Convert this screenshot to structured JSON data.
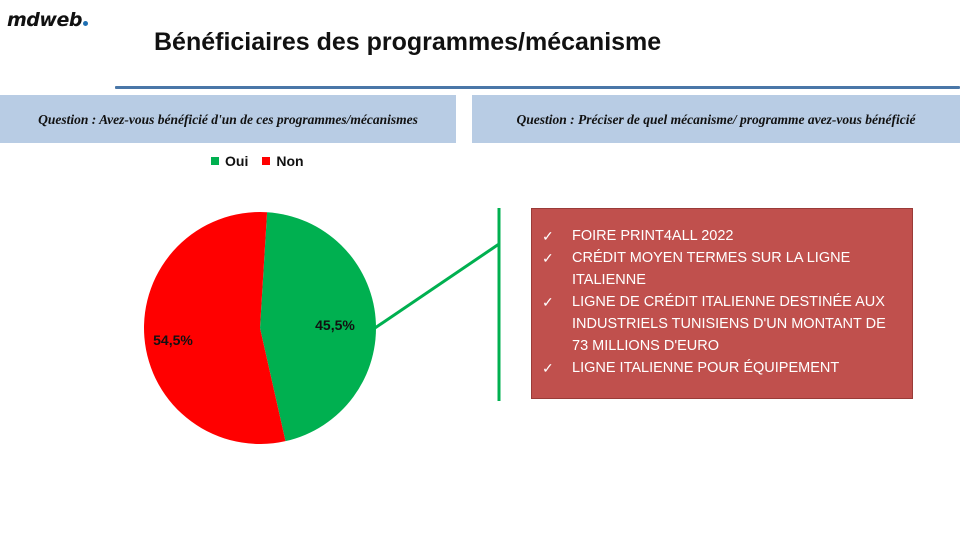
{
  "brand": {
    "logo": "mdweb",
    "dot_color": "#1f6fb2"
  },
  "header": {
    "title": "Bénéficiaires des programmes/mécanisme",
    "rule_color": "#4a77a8"
  },
  "questions": {
    "left": "Question : Avez-vous bénéficié d'un de ces programmes/mécanismes",
    "right": "Question : Préciser de quel mécanisme/ programme avez-vous bénéficié"
  },
  "mechanisms": {
    "check_icon": "✓",
    "items": [
      "FOIRE PRINT4ALL 2022",
      "CRÉDIT MOYEN TERMES SUR LA LIGNE ITALIENNE",
      "LIGNE DE CRÉDIT ITALIENNE DESTINÉE AUX INDUSTRIELS TUNISIENS D'UN MONTANT DE 73 MILLIONS D'EURO",
      "LIGNE ITALIENNE POUR ÉQUIPEMENT"
    ],
    "box_color": "#c0504d"
  },
  "chart_data": {
    "type": "pie",
    "categories": [
      "Oui",
      "Non"
    ],
    "values": [
      45.5,
      54.5
    ],
    "data_labels": [
      "45,5%",
      "54,5%"
    ],
    "colors": [
      "#00b050",
      "#ff0000"
    ],
    "legend_position": "top",
    "connector_color": "#00b050"
  }
}
